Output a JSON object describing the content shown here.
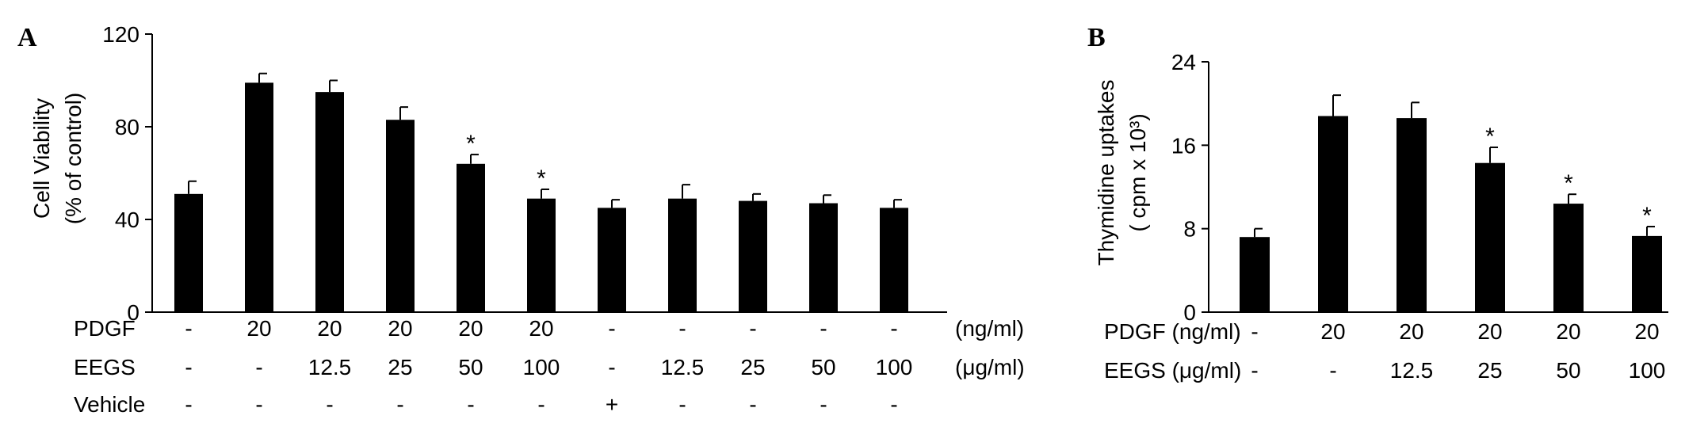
{
  "chart_data": [
    {
      "type": "bar",
      "panel": "A",
      "ylabel_lines": [
        "Cell Viability",
        "(% of control)"
      ],
      "ylim": [
        0,
        120
      ],
      "yticks": [
        0,
        40,
        80,
        120
      ],
      "values": [
        51,
        99,
        95,
        83,
        64,
        49,
        45,
        49,
        48,
        47,
        45
      ],
      "errors": [
        5.5,
        4,
        5,
        5.5,
        4,
        4,
        3.5,
        6,
        3,
        3.5,
        3.5
      ],
      "significant": [
        false,
        false,
        false,
        false,
        true,
        true,
        false,
        false,
        false,
        false,
        false
      ],
      "significance_mark": "*",
      "rows": [
        {
          "label": "PDGF",
          "unit": "(ng/ml)",
          "cells": [
            "-",
            "20",
            "20",
            "20",
            "20",
            "20",
            "-",
            "-",
            "-",
            "-",
            "-"
          ]
        },
        {
          "label": "EEGS",
          "unit": "(μg/ml)",
          "cells": [
            "-",
            "-",
            "12.5",
            "25",
            "50",
            "100",
            "-",
            "12.5",
            "25",
            "50",
            "100"
          ]
        },
        {
          "label": "Vehicle",
          "unit": "",
          "cells": [
            "-",
            "-",
            "-",
            "-",
            "-",
            "-",
            "+",
            "-",
            "-",
            "-",
            "-"
          ]
        }
      ],
      "grid": false,
      "legend": "none"
    },
    {
      "type": "bar",
      "panel": "B",
      "ylabel_lines": [
        "Thymidine uptakes",
        "( cpm x 10³)"
      ],
      "ylim": [
        0,
        24
      ],
      "yticks": [
        0,
        8,
        16,
        24
      ],
      "values": [
        7.2,
        18.8,
        18.6,
        14.3,
        10.4,
        7.3
      ],
      "errors": [
        0.8,
        2.0,
        1.5,
        1.5,
        0.9,
        0.9
      ],
      "significant": [
        false,
        false,
        false,
        true,
        true,
        true
      ],
      "significance_mark": "*",
      "rows": [
        {
          "label": "PDGF (ng/ml)",
          "unit": "",
          "cells": [
            "-",
            "20",
            "20",
            "20",
            "20",
            "20"
          ]
        },
        {
          "label": "EEGS (μg/ml)",
          "unit": "",
          "cells": [
            "-",
            "-",
            "12.5",
            "25",
            "50",
            "100"
          ]
        }
      ],
      "grid": false,
      "legend": "none"
    }
  ]
}
